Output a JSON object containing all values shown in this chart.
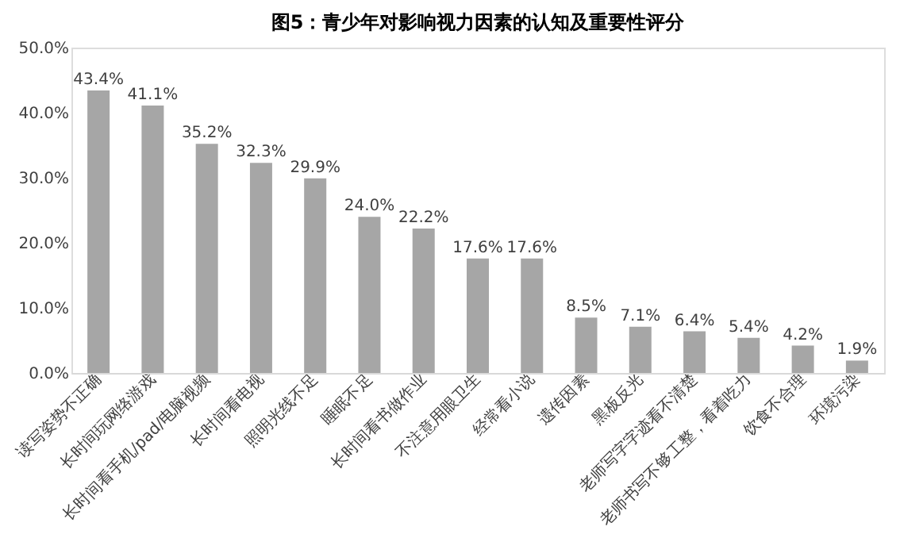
{
  "chart_data": {
    "type": "bar",
    "title": "图5：青少年对影响视力因素的认知及重要性评分",
    "categories": [
      "读写姿势不正确",
      "长时间玩网络游戏",
      "长时间看手机/pad/电脑视频",
      "长时间看电视",
      "照明光线不足",
      "睡眠不足",
      "长时间看书做作业",
      "不注意用眼卫生",
      "经常看小说",
      "遗传因素",
      "黑板反光",
      "老师写字字迹看不清楚",
      "老师书写不够工整，看着吃力",
      "饮食不合理",
      "环境污染"
    ],
    "values": [
      43.4,
      41.1,
      35.2,
      32.3,
      29.9,
      24.0,
      22.2,
      17.6,
      17.6,
      8.5,
      7.1,
      6.4,
      5.4,
      4.2,
      1.9
    ],
    "value_labels": [
      "43.4%",
      "41.1%",
      "35.2%",
      "32.3%",
      "29.9%",
      "24.0%",
      "22.2%",
      "17.6%",
      "17.6%",
      "8.5%",
      "7.1%",
      "6.4%",
      "5.4%",
      "4.2%",
      "1.9%"
    ],
    "color": "#a6a6a6",
    "ylim": [
      0,
      50
    ],
    "yticks": [
      {
        "value": 0,
        "label": "0.0%"
      },
      {
        "value": 10,
        "label": "10.0%"
      },
      {
        "value": 20,
        "label": "20.0%"
      },
      {
        "value": 30,
        "label": "30.0%"
      },
      {
        "value": 40,
        "label": "40.0%"
      },
      {
        "value": 50,
        "label": "50.0%"
      }
    ],
    "grid": false
  }
}
